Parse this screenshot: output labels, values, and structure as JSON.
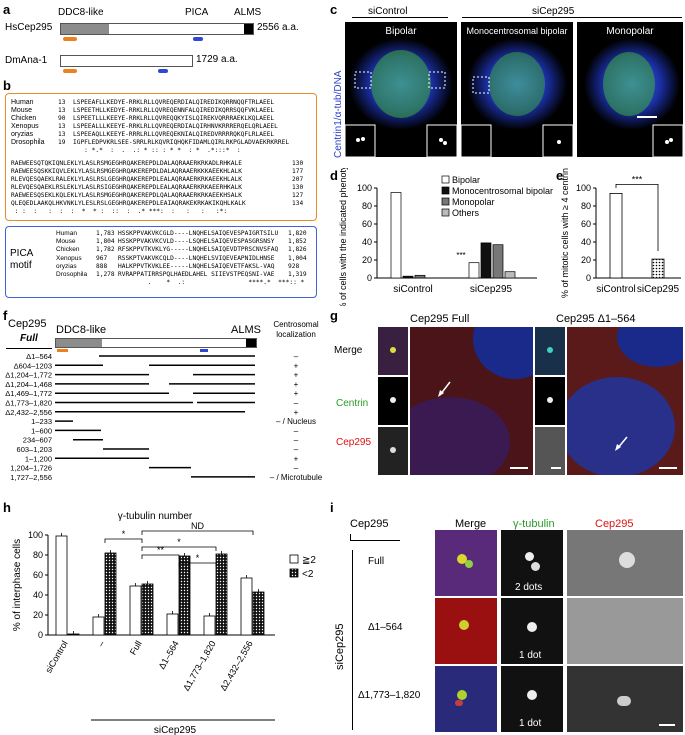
{
  "panel_labels": {
    "a": "a",
    "b": "b",
    "c": "c",
    "d": "d",
    "e": "e",
    "f": "f",
    "g": "g",
    "h": "h",
    "i": "i"
  },
  "panel_a": {
    "domain_ddc8": "DDC8-like",
    "domain_pica": "PICA",
    "domain_alms": "ALMS",
    "hs_name": "HsCep295",
    "hs_len": "2556 a.a.",
    "dm_name": "DmAna-1",
    "dm_len": "1729 a.a."
  },
  "panel_b": {
    "species1": [
      "Human",
      "Mouse",
      "Chicken",
      "Xenopus",
      "oryzias",
      "Drosophila"
    ],
    "start1": [
      "13",
      "13",
      "90",
      "13",
      "13",
      "19"
    ],
    "seq1": [
      "LSPEEAFLLKEDYE-RRKLRLLQVREQERDIALQIREDIKQRRNQQFTRLAEEL",
      "LSPEETHLLKEDYE-RRKLRLLQVREQENNFALQIREDIKQRRSQQFVKLAEEL",
      "LSPEETLLLKEEYE-RRKLRLLQVREQQKYISLQIREKVQRRRAEKLKQLAEEL",
      "LSPEEALLLKEEYE-RRKLRLLQVREQERDIALQIRHNVKRRRERQELQRLAEEL",
      "LSPEEAQLLKEEYE-RRRLRLLQVREQEKNIALQIREDVRRRRQKQFLRLAEEL",
      "IGPFLEDPVKRLSEE-SRRLRLKQVRIQHQKFIDAMLQIRLRKPGLADVAEKRKRREL"
    ],
    "cons1": "   : *.*  :  .  .: * :: : * *  : *  .*:::*  :",
    "seq2": [
      "RAEWEESQTQKIQNLEKLYLASLRSMGEGHRQAKEREPDLDALAQRAAERKRKADLRHKALE",
      "RAEWEESQSKKIQVLEKLYLASLRSMGEGHRQAKEREPDLDALAQRAAERKKKAEEKHLALK",
      "RLEVQESQAEKLRALEKLYLASLRSLGEGHRQAKEREPDLEALAQRAAERKRKAEEKHLALK",
      "RLEVQESQAEKLRSLEKLYLASLRSIGEGHRQAKEREPDLEALAQRAAERKRKAEERHKALK",
      "RAEWEESQSEKLKQLEKLYLASLRSMGEGHRQAKEREPDLQALAQRAAERKRKAEEKHSALK",
      "QLEQEDLAAKQLHKVNKLYLESLRSLGEGHRQAKEREPDLEAIAQRAKEKRKAKIKQHLKALK"
    ],
    "end2": [
      "130",
      "177",
      "207",
      "130",
      "127",
      "134"
    ],
    "cons2": " : :  :   :  :  :  *  * :  ::  :  .* ***:  :   :   :   :*:",
    "motif_label": "PICA motif",
    "start3": [
      "1,783",
      "1,804",
      "1,782",
      "967",
      "888",
      "1,278"
    ],
    "seq3": [
      "HSSKPPVAKVKCGLD----LNQHELSAIQEVESPAIGRTSILU",
      "HSSKPPVAKVKCVLD----LSQHELSAIQEVESPASGRSNSY",
      "RFSKPPVTKVKLYG-----LNQHELSAIQEVDTPRSCNVSFAQ",
      "RSSKPTVAKVKCQLD----LNQHELSVIQEVEAPNIDLHNSE",
      "HALKPPVTKVKLEE-----LNQHELSAIQEVETFAKSL-VAQ",
      "RVRAPPATIRRSPQLHAEDLAHEL SIIEVSTPEQSNI-VAE"
    ],
    "end3": [
      "1,820",
      "1,852",
      "1,826",
      "1,004",
      "928",
      "1,319"
    ],
    "cons3": "        .    *  .:                 ****.*  ***:: *"
  },
  "panel_c": {
    "left_label": "siControl",
    "right_label": "siCep295",
    "sub1": "Bipolar",
    "sub2": "Monocentrosomal bipolar",
    "sub3": "Monopolar",
    "side_label": "Centrin1/α-tub/DNA"
  },
  "panel_d": {
    "chart_data": {
      "type": "bar",
      "categories": [
        "siControl",
        "siCep295"
      ],
      "series": [
        {
          "name": "Bipolar",
          "values": [
            95,
            17
          ]
        },
        {
          "name": "Monocentrosomal bipolar",
          "values": [
            2,
            39
          ]
        },
        {
          "name": "Monopolar",
          "values": [
            3,
            37
          ]
        },
        {
          "name": "Others",
          "values": [
            0,
            7
          ]
        }
      ],
      "ylabel": "% of cells with the indicated phenotype",
      "ylim": [
        0,
        100
      ],
      "yticks": [
        "0",
        "20",
        "40",
        "60",
        "80",
        "100"
      ],
      "annotation": "***",
      "legend": "top-right"
    }
  },
  "panel_e": {
    "chart_data": {
      "type": "bar",
      "categories": [
        "siControl",
        "siCep295"
      ],
      "values": [
        94,
        21
      ],
      "ylabel": "% of mitotic cells with ≥ 4 centrin",
      "ylim": [
        0,
        100
      ],
      "yticks": [
        "0",
        "20",
        "40",
        "60",
        "80",
        "100"
      ],
      "annotation": "***"
    }
  },
  "panel_f": {
    "title": "Cep295",
    "full": "Full",
    "ddc8": "DDC8-like",
    "alms": "ALMS",
    "loc_header": "Centrosomal localization",
    "rows": [
      {
        "label": "Δ1–564",
        "loc": "–"
      },
      {
        "label": "Δ604–1203",
        "loc": "+"
      },
      {
        "label": "Δ1,204–1,772",
        "loc": "+"
      },
      {
        "label": "Δ1,204–1,468",
        "loc": "+"
      },
      {
        "label": "Δ1,469–1,772",
        "loc": "+"
      },
      {
        "label": "Δ1,773–1,820",
        "loc": "–"
      },
      {
        "label": "Δ2,432–2,556",
        "loc": "+"
      },
      {
        "label": "1–233",
        "loc": "– / Nucleus"
      },
      {
        "label": "1–600",
        "loc": "–"
      },
      {
        "label": "234–607",
        "loc": "–"
      },
      {
        "label": "603–1,203",
        "loc": "–"
      },
      {
        "label": "1–1,200",
        "loc": "+"
      },
      {
        "label": "1,204–1,726",
        "loc": "–"
      },
      {
        "label": "1,727–2,556",
        "loc": "– / Microtubule"
      }
    ]
  },
  "panel_g": {
    "title1": "Cep295 Full",
    "title2": "Cep295 Δ1–564",
    "row1": "Merge",
    "row2": "Centrin",
    "row3": "Cep295"
  },
  "panel_h": {
    "chart_data": {
      "type": "bar",
      "title": "γ-tubulin number",
      "categories": [
        "siControl",
        "–",
        "Full",
        "Δ1–564",
        "Δ1,773–1,820",
        "Δ2,432–2,556"
      ],
      "series": [
        {
          "name": "≧2",
          "values": [
            99,
            18,
            49,
            21,
            19,
            57
          ]
        },
        {
          "name": "<2",
          "values": [
            1,
            82,
            51,
            79,
            81,
            43
          ]
        }
      ],
      "ylabel": "% of interphase cells",
      "ylim": [
        0,
        100
      ],
      "yticks": [
        "0",
        "20",
        "40",
        "60",
        "80",
        "100"
      ],
      "group_label": "siCep295",
      "annotations": [
        "*",
        "*",
        "**",
        "*",
        "ND"
      ],
      "legend": "right"
    }
  },
  "panel_i": {
    "header_cep": "Cep295",
    "col1": "Merge",
    "col2": "γ-tubulin",
    "col3": "Cep295",
    "side": "siCep295",
    "rows": [
      {
        "label": "Full",
        "dots": "2 dots"
      },
      {
        "label": "Δ1–564",
        "dots": "1 dot"
      },
      {
        "label": "Δ1,773–1,820",
        "dots": "1 dot"
      }
    ]
  }
}
